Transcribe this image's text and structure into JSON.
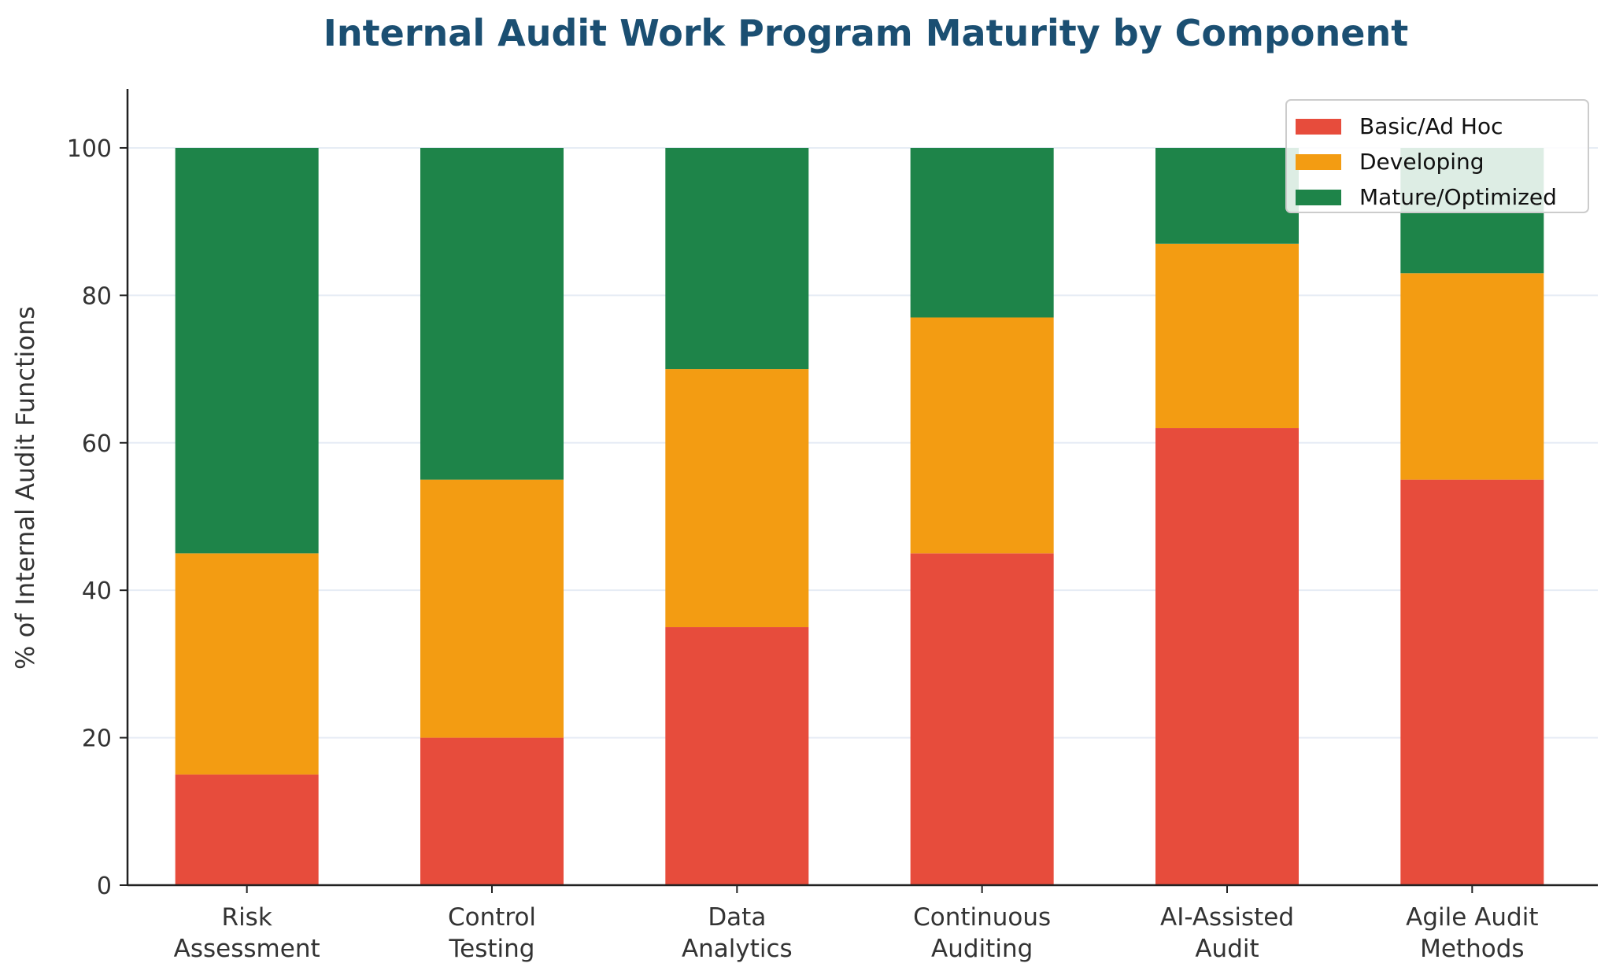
{
  "chart_data": {
    "type": "bar",
    "stacked": true,
    "title": "Internal Audit Work Program Maturity by Component",
    "xlabel": "",
    "ylabel": "% of Internal Audit Functions",
    "ylim": [
      0,
      108
    ],
    "yticks": [
      0,
      20,
      40,
      60,
      80,
      100
    ],
    "grid": "horizontal",
    "legend_position": "top-right",
    "categories": [
      [
        "Risk",
        "Assessment"
      ],
      [
        "Control",
        "Testing"
      ],
      [
        "Data",
        "Analytics"
      ],
      [
        "Continuous",
        "Auditing"
      ],
      [
        "AI-Assisted",
        "Audit"
      ],
      [
        "Agile Audit",
        "Methods"
      ]
    ],
    "series": [
      {
        "name": "Basic/Ad Hoc",
        "color": "#e74c3c",
        "values": [
          15,
          20,
          35,
          45,
          62,
          55
        ]
      },
      {
        "name": "Developing",
        "color": "#f39c12",
        "values": [
          30,
          35,
          35,
          32,
          25,
          28
        ]
      },
      {
        "name": "Mature/Optimized",
        "color": "#1e8449",
        "values": [
          55,
          45,
          30,
          23,
          13,
          17
        ]
      }
    ]
  },
  "colors": {
    "title": "#1b4f72",
    "axis": "#222222",
    "grid": "#e6ecf5"
  }
}
